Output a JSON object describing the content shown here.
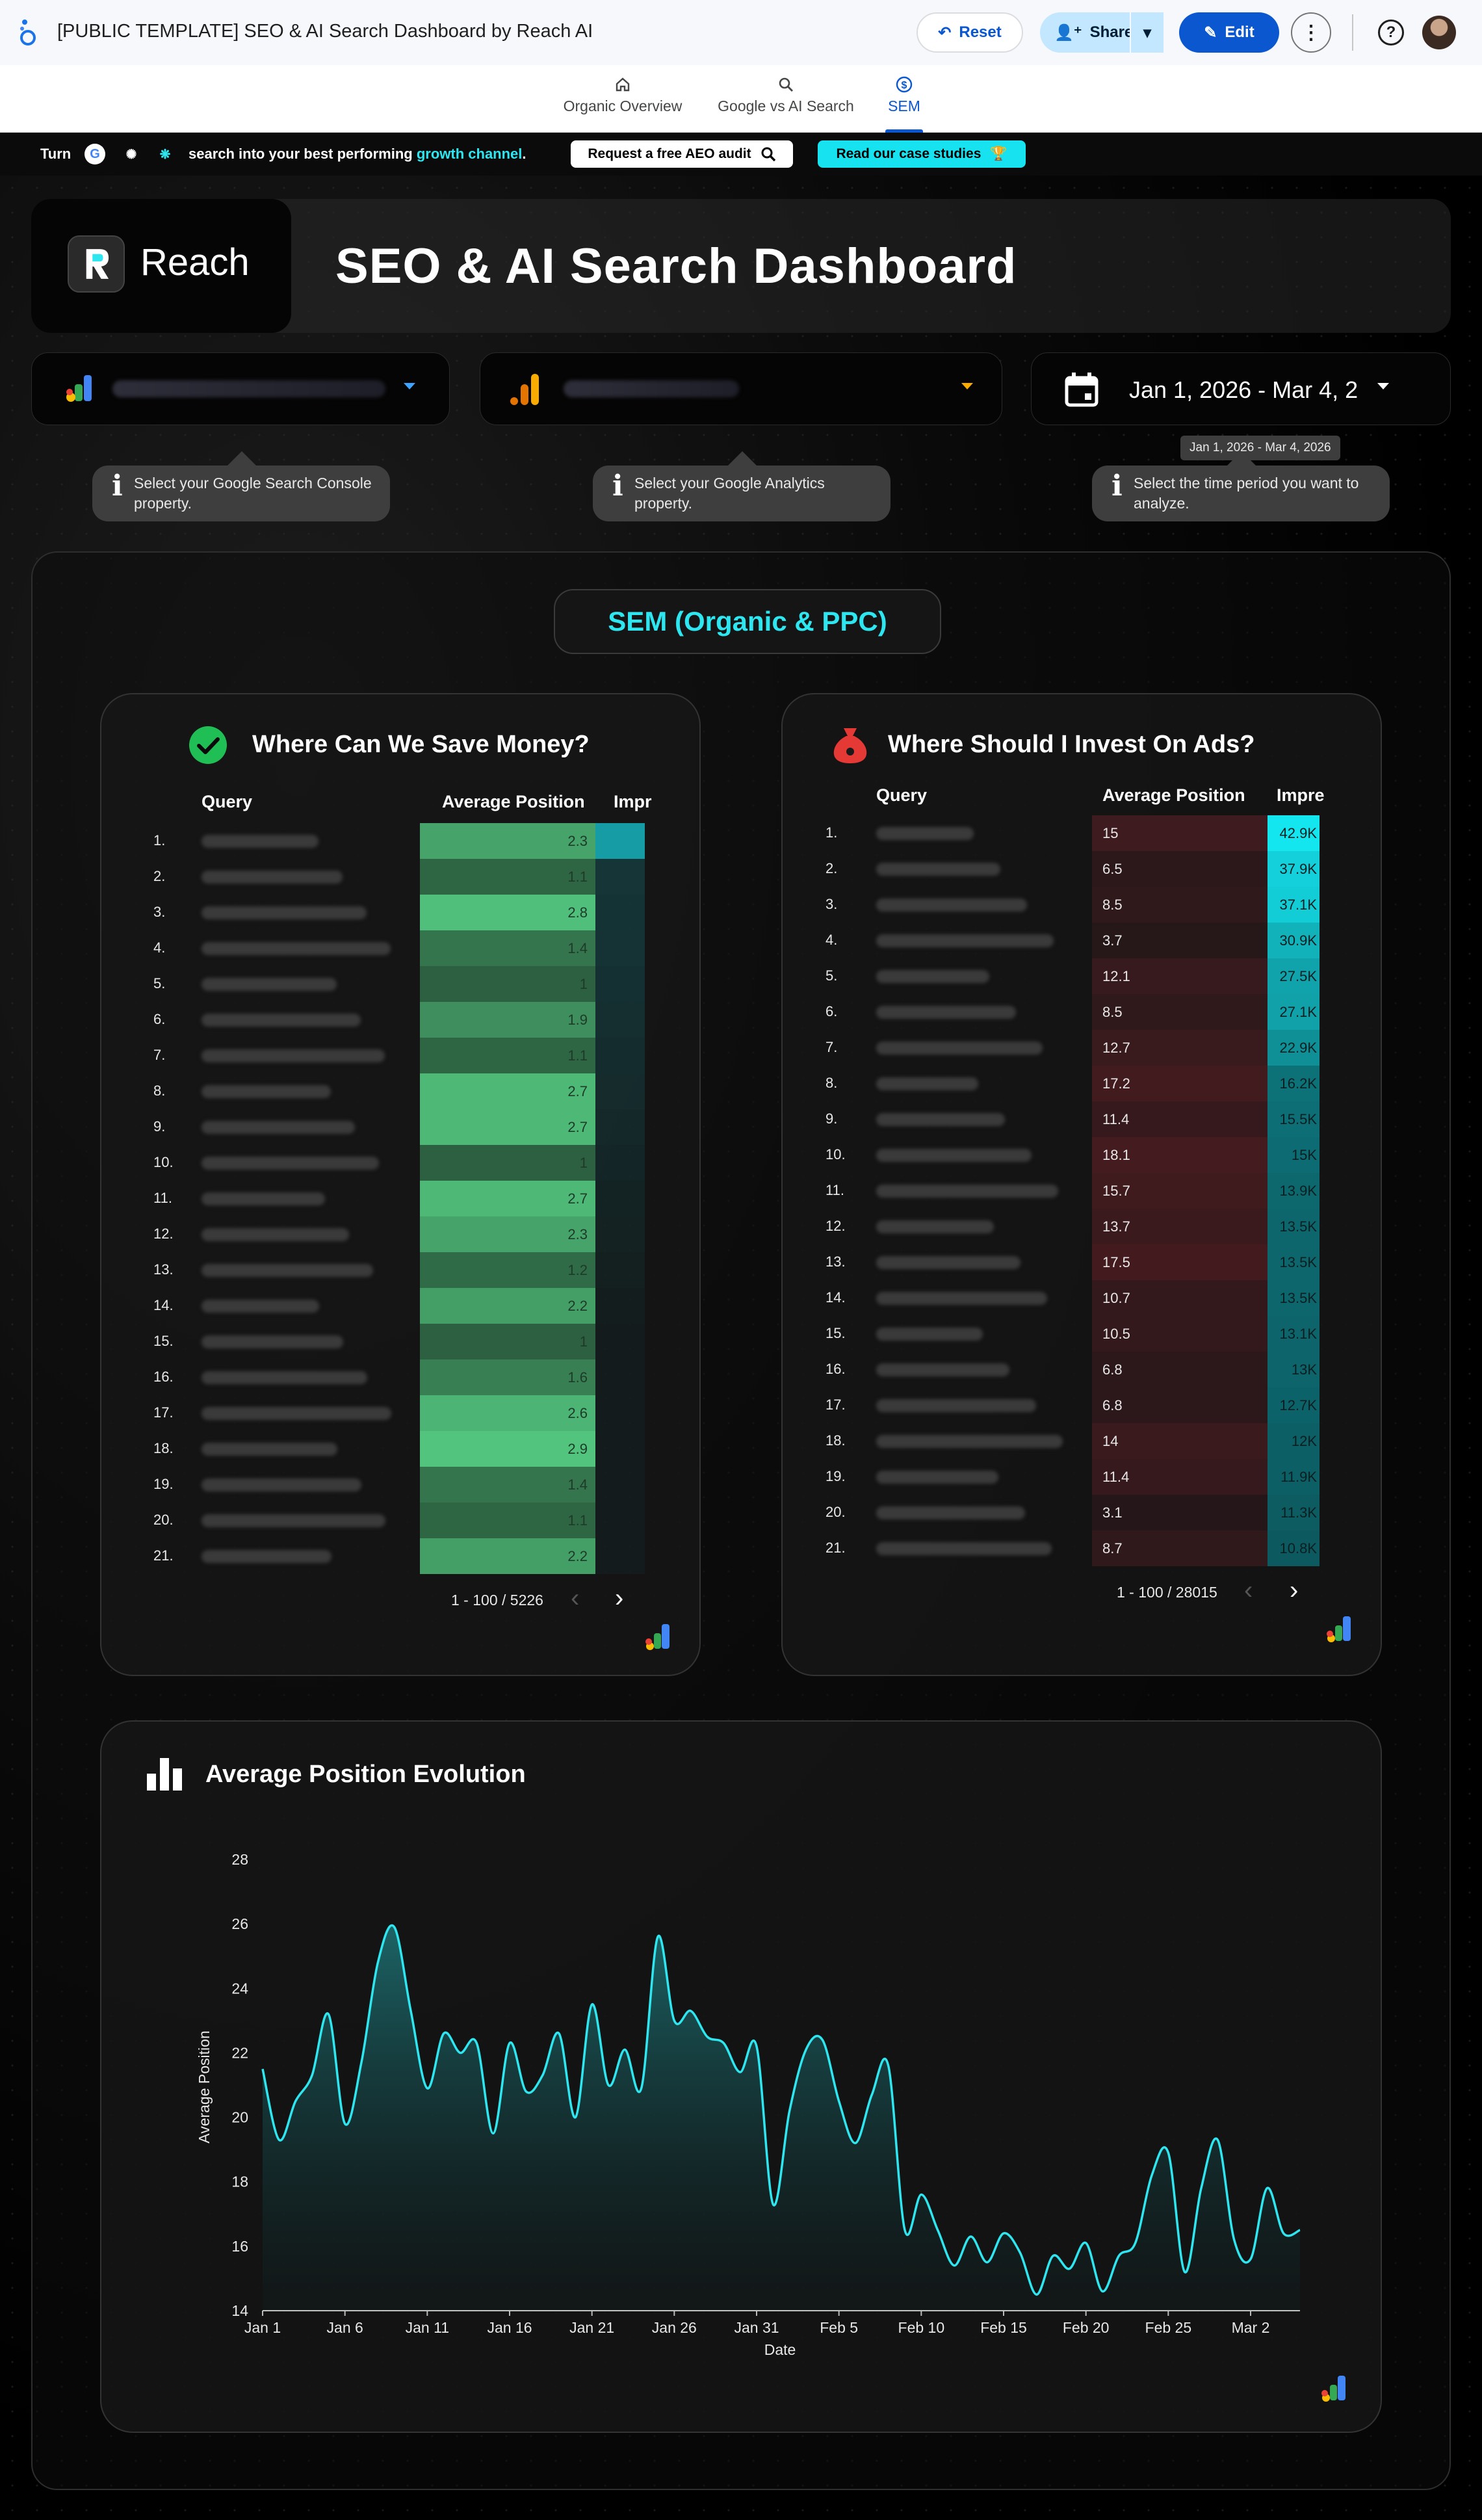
{
  "app": {
    "doc_title": "[PUBLIC TEMPLATE] SEO & AI Search Dashboard by Reach AI",
    "reset_label": "Reset",
    "share_label": "Share",
    "edit_label": "Edit"
  },
  "nav": {
    "tabs": [
      {
        "label": "Organic Overview",
        "icon": "home-icon"
      },
      {
        "label": "Google vs AI Search",
        "icon": "search-icon"
      },
      {
        "label": "SEM",
        "icon": "dollar-icon",
        "active": true
      }
    ]
  },
  "promo": {
    "turn": "Turn",
    "msg_prefix": "search into your best performing ",
    "msg_highlight": "growth channel",
    "msg_suffix": ".",
    "audit_label": "Request a free AEO audit",
    "case_label": "Read our case studies"
  },
  "header": {
    "brand": "Reach",
    "title": "SEO & AI Search Dashboard"
  },
  "filters": {
    "date_range": "Jan 1, 2026 - Mar 4, 2",
    "date_tooltip": "Jan 1, 2026 - Mar 4, 2026",
    "hints": [
      "Select your Google Search Console property.",
      "Select your Google Analytics property.",
      "Select the time period you want to analyze."
    ]
  },
  "sem": {
    "section_title": "SEM (Organic & PPC)"
  },
  "save_money": {
    "title": "Where Can We Save Money?",
    "col_query": "Query",
    "col_position": "Average Position",
    "col_impressions": "Impr",
    "pager": "1 - 100 / 5226",
    "rows": [
      {
        "n": "1.",
        "pos": "2.3"
      },
      {
        "n": "2.",
        "pos": "1.1"
      },
      {
        "n": "3.",
        "pos": "2.8"
      },
      {
        "n": "4.",
        "pos": "1.4"
      },
      {
        "n": "5.",
        "pos": "1"
      },
      {
        "n": "6.",
        "pos": "1.9"
      },
      {
        "n": "7.",
        "pos": "1.1"
      },
      {
        "n": "8.",
        "pos": "2.7"
      },
      {
        "n": "9.",
        "pos": "2.7"
      },
      {
        "n": "10.",
        "pos": "1"
      },
      {
        "n": "11.",
        "pos": "2.7"
      },
      {
        "n": "12.",
        "pos": "2.3"
      },
      {
        "n": "13.",
        "pos": "1.2"
      },
      {
        "n": "14.",
        "pos": "2.2"
      },
      {
        "n": "15.",
        "pos": "1"
      },
      {
        "n": "16.",
        "pos": "1.6"
      },
      {
        "n": "17.",
        "pos": "2.6"
      },
      {
        "n": "18.",
        "pos": "2.9"
      },
      {
        "n": "19.",
        "pos": "1.4"
      },
      {
        "n": "20.",
        "pos": "1.1"
      },
      {
        "n": "21.",
        "pos": "2.2"
      }
    ]
  },
  "invest_ads": {
    "title": "Where Should I Invest On Ads?",
    "col_query": "Query",
    "col_position": "Average Position",
    "col_impressions": "Impre",
    "pager": "1 - 100 / 28015",
    "rows": [
      {
        "n": "1.",
        "pos": "15",
        "imp": "42.9K"
      },
      {
        "n": "2.",
        "pos": "6.5",
        "imp": "37.9K"
      },
      {
        "n": "3.",
        "pos": "8.5",
        "imp": "37.1K"
      },
      {
        "n": "4.",
        "pos": "3.7",
        "imp": "30.9K"
      },
      {
        "n": "5.",
        "pos": "12.1",
        "imp": "27.5K"
      },
      {
        "n": "6.",
        "pos": "8.5",
        "imp": "27.1K"
      },
      {
        "n": "7.",
        "pos": "12.7",
        "imp": "22.9K"
      },
      {
        "n": "8.",
        "pos": "17.2",
        "imp": "16.2K"
      },
      {
        "n": "9.",
        "pos": "11.4",
        "imp": "15.5K"
      },
      {
        "n": "10.",
        "pos": "18.1",
        "imp": "15K"
      },
      {
        "n": "11.",
        "pos": "15.7",
        "imp": "13.9K"
      },
      {
        "n": "12.",
        "pos": "13.7",
        "imp": "13.5K"
      },
      {
        "n": "13.",
        "pos": "17.5",
        "imp": "13.5K"
      },
      {
        "n": "14.",
        "pos": "10.7",
        "imp": "13.5K"
      },
      {
        "n": "15.",
        "pos": "10.5",
        "imp": "13.1K"
      },
      {
        "n": "16.",
        "pos": "6.8",
        "imp": "13K"
      },
      {
        "n": "17.",
        "pos": "6.8",
        "imp": "12.7K"
      },
      {
        "n": "18.",
        "pos": "14",
        "imp": "12K"
      },
      {
        "n": "19.",
        "pos": "11.4",
        "imp": "11.9K"
      },
      {
        "n": "20.",
        "pos": "3.1",
        "imp": "11.3K"
      },
      {
        "n": "21.",
        "pos": "8.7",
        "imp": "10.8K"
      }
    ]
  },
  "chart_data": {
    "type": "area",
    "title": "Average Position Evolution",
    "xlabel": "Date",
    "ylabel": "Average Position",
    "ylim": [
      14,
      28
    ],
    "yticks": [
      14,
      16,
      18,
      20,
      22,
      24,
      26,
      28
    ],
    "xticks": [
      "Jan 1",
      "Jan 6",
      "Jan 11",
      "Jan 16",
      "Jan 21",
      "Jan 26",
      "Jan 31",
      "Feb 5",
      "Feb 10",
      "Feb 15",
      "Feb 20",
      "Feb 25",
      "Mar 2"
    ],
    "series": [
      {
        "color": "#2ee6f0",
        "x_start": "Jan 1",
        "y": [
          21.5,
          19.3,
          20.5,
          21.3,
          23.2,
          19.8,
          21.7,
          24.8,
          25.9,
          23.3,
          20.9,
          22.6,
          22.0,
          22.3,
          19.5,
          22.3,
          20.8,
          21.3,
          22.6,
          20.0,
          23.5,
          21.0,
          22.1,
          20.9,
          25.6,
          23.0,
          23.3,
          22.5,
          22.3,
          21.4,
          22.2,
          17.3,
          20.2,
          22.1,
          22.4,
          20.5,
          19.2,
          20.7,
          21.6,
          16.5,
          17.6,
          16.5,
          15.4,
          16.3,
          15.5,
          16.4,
          15.8,
          14.5,
          15.7,
          15.3,
          16.1,
          14.6,
          15.7,
          16.1,
          18.2,
          18.9,
          15.2,
          17.8,
          19.3,
          16.2,
          15.6,
          17.8,
          16.4,
          16.5
        ]
      }
    ]
  }
}
